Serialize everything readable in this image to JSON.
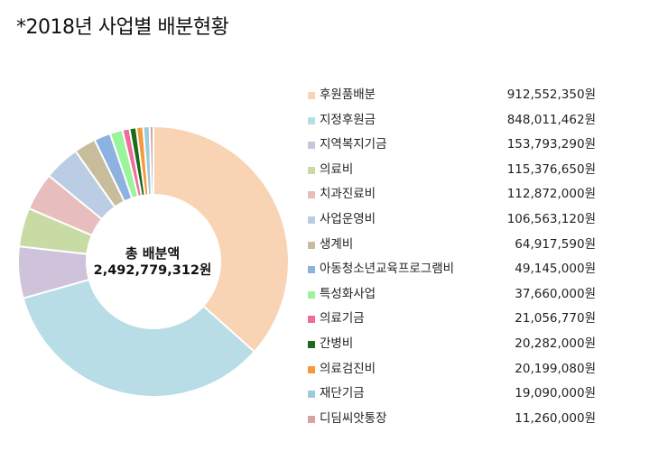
{
  "title": "*2018년 사업별 배분현황",
  "center": {
    "line1": "총 배분액",
    "line2": "2,492,779,312원"
  },
  "chart_data": {
    "type": "pie",
    "subtype": "donut",
    "title": "*2018년 사업별 배분현황",
    "center_label": "총 배분액 2,492,779,312원",
    "legend_position": "right",
    "slices": [
      {
        "label": "후원품배분",
        "value": 912552350,
        "value_text": "912,552,350원",
        "color": "#F8D3B4"
      },
      {
        "label": "지정후원금",
        "value": 848011462,
        "value_text": "848,011,462원",
        "color": "#B8DDE7"
      },
      {
        "label": "지역복지기금",
        "value": 153793290,
        "value_text": "153,793,290원",
        "color": "#CFC3DC"
      },
      {
        "label": "의료비",
        "value": 115376650,
        "value_text": "115,376,650원",
        "color": "#C9DBA5"
      },
      {
        "label": "치과진료비",
        "value": 112872000,
        "value_text": "112,872,000원",
        "color": "#E7BDBD"
      },
      {
        "label": "사업운영비",
        "value": 106563120,
        "value_text": "106,563,120원",
        "color": "#BACDE4"
      },
      {
        "label": "생계비",
        "value": 64917590,
        "value_text": "64,917,590원",
        "color": "#C7BD9C"
      },
      {
        "label": "아동청소년교육프로그램비",
        "value": 49145000,
        "value_text": "49,145,000원",
        "color": "#8DB1E0"
      },
      {
        "label": "특성화사업",
        "value": 37660000,
        "value_text": "37,660,000원",
        "color": "#9AF59A"
      },
      {
        "label": "의료기금",
        "value": 21056770,
        "value_text": "21,056,770원",
        "color": "#F06C9B"
      },
      {
        "label": "간병비",
        "value": 20282000,
        "value_text": "20,282,000원",
        "color": "#1A6B1A"
      },
      {
        "label": "의료검진비",
        "value": 20199080,
        "value_text": "20,199,080원",
        "color": "#F59A3C"
      },
      {
        "label": "재단기금",
        "value": 19090000,
        "value_text": "19,090,000원",
        "color": "#9CCBE0"
      },
      {
        "label": "디딤씨앗통장",
        "value": 11260000,
        "value_text": "11,260,000원",
        "color": "#D9A3A3"
      }
    ]
  }
}
